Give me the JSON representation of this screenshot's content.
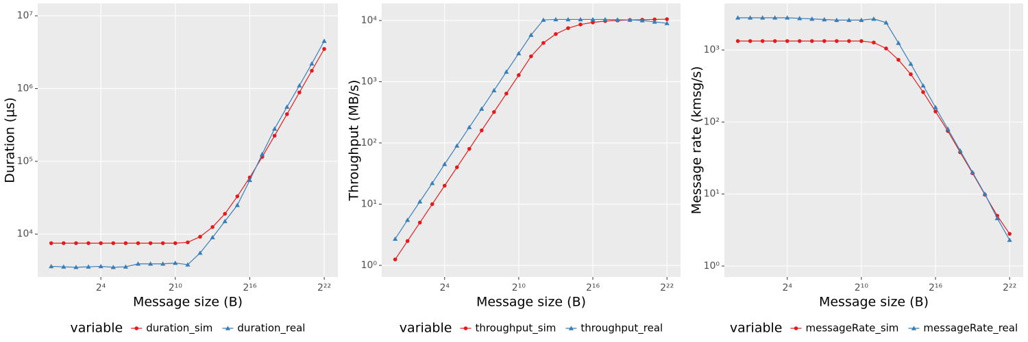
{
  "chart_data": [
    {
      "type": "line",
      "xlabel": "Message size (B)",
      "ylabel": "Duration (µs)",
      "log_x": true,
      "log_y": true,
      "grid": true,
      "xlim": [
        0.47,
        8990000
      ],
      "ylim": [
        2570,
        14800000
      ],
      "xticks": [
        {
          "value": 16,
          "label": "2⁴"
        },
        {
          "value": 1024,
          "label": "2¹⁰"
        },
        {
          "value": 65536,
          "label": "2¹⁶"
        },
        {
          "value": 4194304,
          "label": "2²²"
        }
      ],
      "yticks": [
        {
          "value": 10000,
          "label": "10⁴"
        },
        {
          "value": 100000,
          "label": "10⁵"
        },
        {
          "value": 1000000,
          "label": "10⁶"
        },
        {
          "value": 10000000,
          "label": "10⁷"
        }
      ],
      "legend_title": "variable",
      "legend_position": "bottom",
      "x": [
        1,
        2,
        4,
        8,
        16,
        32,
        64,
        128,
        256,
        512,
        1024,
        2048,
        4096,
        8192,
        16384,
        32768,
        65536,
        131072,
        262144,
        524288,
        1048576,
        2097152,
        4194304
      ],
      "series": [
        {
          "name": "duration_sim",
          "color": "#e41a1c",
          "marker": "circle",
          "values": [
            7500,
            7500,
            7500,
            7500,
            7500,
            7500,
            7500,
            7500,
            7500,
            7500,
            7500,
            7700,
            9200,
            12500,
            19000,
            33000,
            60000,
            115000,
            225000,
            445000,
            885000,
            1760000,
            3500000
          ]
        },
        {
          "name": "duration_real",
          "color": "#377eb8",
          "marker": "triangle",
          "values": [
            3600,
            3550,
            3500,
            3550,
            3600,
            3500,
            3550,
            3900,
            3900,
            3900,
            4000,
            3800,
            5500,
            9000,
            15000,
            25000,
            55000,
            125000,
            280000,
            560000,
            1100000,
            2200000,
            4500000
          ]
        }
      ]
    },
    {
      "type": "line",
      "xlabel": "Message size (B)",
      "ylabel": "Throughput (MB/s)",
      "log_x": true,
      "log_y": true,
      "grid": true,
      "xlim": [
        0.47,
        8990000
      ],
      "ylim": [
        0.645,
        19000
      ],
      "xticks": [
        {
          "value": 16,
          "label": "2⁴"
        },
        {
          "value": 1024,
          "label": "2¹⁰"
        },
        {
          "value": 65536,
          "label": "2¹⁶"
        },
        {
          "value": 4194304,
          "label": "2²²"
        }
      ],
      "yticks": [
        {
          "value": 1,
          "label": "10⁰"
        },
        {
          "value": 10,
          "label": "10¹"
        },
        {
          "value": 100,
          "label": "10²"
        },
        {
          "value": 1000,
          "label": "10³"
        },
        {
          "value": 10000,
          "label": "10⁴"
        }
      ],
      "legend_title": "variable",
      "legend_position": "bottom",
      "x": [
        1,
        2,
        4,
        8,
        16,
        32,
        64,
        128,
        256,
        512,
        1024,
        2048,
        4096,
        8192,
        16384,
        32768,
        65536,
        131072,
        262144,
        524288,
        1048576,
        2097152,
        4194304
      ],
      "series": [
        {
          "name": "throughput_sim",
          "color": "#e41a1c",
          "marker": "circle",
          "values": [
            1.25,
            2.5,
            5,
            10,
            20,
            40,
            80,
            160,
            320,
            640,
            1280,
            2600,
            4300,
            6000,
            7500,
            8600,
            9300,
            9800,
            10000,
            10200,
            10300,
            10400,
            10500
          ]
        },
        {
          "name": "throughput_real",
          "color": "#377eb8",
          "marker": "triangle",
          "values": [
            2.7,
            5.5,
            11,
            22,
            45,
            90,
            180,
            360,
            720,
            1450,
            2900,
            5800,
            10200,
            10400,
            10400,
            10400,
            10400,
            10400,
            10300,
            10200,
            10000,
            9500,
            9000
          ]
        }
      ]
    },
    {
      "type": "line",
      "xlabel": "Message size (B)",
      "ylabel": "Message rate (kmsg/s)",
      "log_x": true,
      "log_y": true,
      "grid": true,
      "xlim": [
        0.47,
        8990000
      ],
      "ylim": [
        0.705,
        4430
      ],
      "xticks": [
        {
          "value": 16,
          "label": "2⁴"
        },
        {
          "value": 1024,
          "label": "2¹⁰"
        },
        {
          "value": 65536,
          "label": "2¹⁶"
        },
        {
          "value": 4194304,
          "label": "2²²"
        }
      ],
      "yticks": [
        {
          "value": 1,
          "label": "10⁰"
        },
        {
          "value": 10,
          "label": "10¹"
        },
        {
          "value": 100,
          "label": "10²"
        },
        {
          "value": 1000,
          "label": "10³"
        }
      ],
      "legend_title": "variable",
      "legend_position": "bottom",
      "x": [
        1,
        2,
        4,
        8,
        16,
        32,
        64,
        128,
        256,
        512,
        1024,
        2048,
        4096,
        8192,
        16384,
        32768,
        65536,
        131072,
        262144,
        524288,
        1048576,
        2097152,
        4194304
      ],
      "series": [
        {
          "name": "messageRate_sim",
          "color": "#e41a1c",
          "marker": "circle",
          "values": [
            1330,
            1330,
            1330,
            1330,
            1330,
            1330,
            1330,
            1330,
            1330,
            1330,
            1330,
            1270,
            1050,
            730,
            460,
            260,
            140,
            75,
            38,
            19.5,
            9.8,
            5,
            2.8
          ]
        },
        {
          "name": "messageRate_real",
          "color": "#377eb8",
          "marker": "triangle",
          "values": [
            2800,
            2800,
            2800,
            2800,
            2800,
            2750,
            2700,
            2650,
            2600,
            2600,
            2600,
            2700,
            2400,
            1250,
            640,
            320,
            160,
            80,
            40,
            20,
            10,
            4.6,
            2.3
          ]
        }
      ]
    }
  ]
}
